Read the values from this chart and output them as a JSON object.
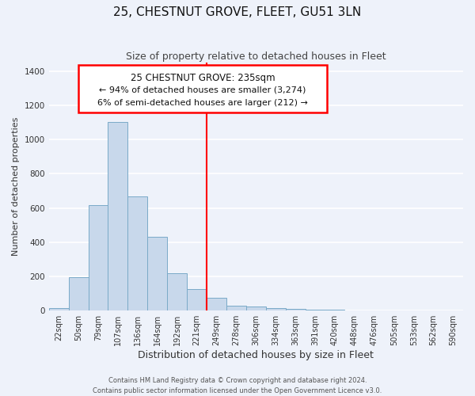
{
  "title": "25, CHESTNUT GROVE, FLEET, GU51 3LN",
  "subtitle": "Size of property relative to detached houses in Fleet",
  "xlabel": "Distribution of detached houses by size in Fleet",
  "ylabel": "Number of detached properties",
  "bar_labels": [
    "22sqm",
    "50sqm",
    "79sqm",
    "107sqm",
    "136sqm",
    "164sqm",
    "192sqm",
    "221sqm",
    "249sqm",
    "278sqm",
    "306sqm",
    "334sqm",
    "363sqm",
    "391sqm",
    "420sqm",
    "448sqm",
    "476sqm",
    "505sqm",
    "533sqm",
    "562sqm",
    "590sqm"
  ],
  "bar_values": [
    15,
    195,
    615,
    1105,
    670,
    430,
    220,
    125,
    75,
    30,
    22,
    15,
    10,
    7,
    4,
    0,
    0,
    0,
    0,
    0,
    0
  ],
  "bar_color": "#c8d8eb",
  "bar_edge_color": "#7aaac8",
  "ylim": [
    0,
    1450
  ],
  "yticks": [
    0,
    200,
    400,
    600,
    800,
    1000,
    1200,
    1400
  ],
  "marker_label": "25 CHESTNUT GROVE: 235sqm",
  "annotation_line1": "← 94% of detached houses are smaller (3,274)",
  "annotation_line2": "6% of semi-detached houses are larger (212) →",
  "footnote1": "Contains HM Land Registry data © Crown copyright and database right 2024.",
  "footnote2": "Contains public sector information licensed under the Open Government Licence v3.0.",
  "background_color": "#eef2fa",
  "grid_color": "#ffffff",
  "title_fontsize": 11,
  "subtitle_fontsize": 9,
  "xlabel_fontsize": 9,
  "ylabel_fontsize": 8,
  "tick_fontsize": 7
}
